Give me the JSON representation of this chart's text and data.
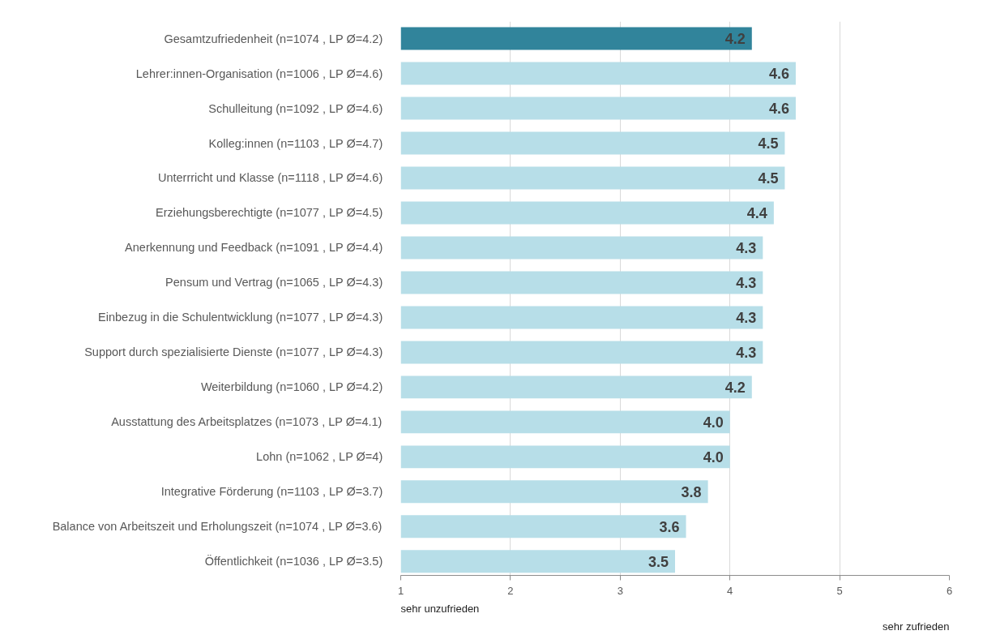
{
  "chart_data": {
    "type": "bar",
    "orientation": "horizontal",
    "categories": [
      "Gesamtzufriedenheit (n=1074 , LP Ø=4.2)",
      "Lehrer:innen-Organisation (n=1006 , LP Ø=4.6)",
      "Schulleitung (n=1092 , LP Ø=4.6)",
      "Kolleg:innen (n=1103 , LP Ø=4.7)",
      "Unterrricht und Klasse (n=1118 , LP Ø=4.6)",
      "Erziehungsberechtigte (n=1077 , LP Ø=4.5)",
      "Anerkennung und Feedback (n=1091 , LP Ø=4.4)",
      "Pensum und Vertrag (n=1065 , LP Ø=4.3)",
      "Einbezug in die Schulentwicklung (n=1077 , LP Ø=4.3)",
      "Support durch spezialisierte Dienste (n=1077 , LP Ø=4.3)",
      "Weiterbildung (n=1060 , LP Ø=4.2)",
      "Ausstattung des Arbeitsplatzes (n=1073 , LP Ø=4.1)",
      "Lohn (n=1062 , LP Ø=4)",
      "Integrative Förderung (n=1103 , LP Ø=3.7)",
      "Balance von Arbeitszeit und Erholungszeit (n=1074 , LP Ø=3.6)",
      "Öffentlichkeit (n=1036 , LP Ø=3.5)"
    ],
    "values": [
      4.2,
      4.6,
      4.6,
      4.5,
      4.5,
      4.4,
      4.3,
      4.3,
      4.3,
      4.3,
      4.2,
      4.0,
      4.0,
      3.8,
      3.6,
      3.5
    ],
    "value_labels": [
      "4.2",
      "4.6",
      "4.6",
      "4.5",
      "4.5",
      "4.4",
      "4.3",
      "4.3",
      "4.3",
      "4.3",
      "4.2",
      "4.0",
      "4.0",
      "3.8",
      "3.6",
      "3.5"
    ],
    "colors": [
      "#31849b",
      "#b7dee8",
      "#b7dee8",
      "#b7dee8",
      "#b7dee8",
      "#b7dee8",
      "#b7dee8",
      "#b7dee8",
      "#b7dee8",
      "#b7dee8",
      "#b7dee8",
      "#b7dee8",
      "#b7dee8",
      "#b7dee8",
      "#b7dee8",
      "#b7dee8"
    ],
    "xlim": [
      1,
      6
    ],
    "xticks": [
      1,
      2,
      3,
      4,
      5,
      6
    ],
    "grid": "x",
    "annotations": [
      "sehr unzufrieden",
      "sehr zufrieden"
    ]
  }
}
